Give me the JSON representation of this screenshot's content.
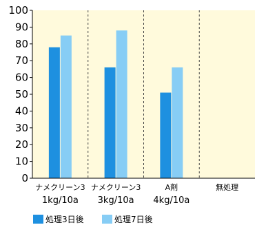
{
  "chart_data": {
    "type": "bar",
    "title": "",
    "xlabel": "",
    "ylabel": "",
    "ylim": [
      0,
      100
    ],
    "y_ticks": [
      0,
      10,
      20,
      30,
      40,
      50,
      60,
      70,
      80,
      90,
      100
    ],
    "grid": false,
    "legend_position": "bottom",
    "categories": [
      {
        "line1": "ナメクリーン3",
        "line2": "1kg/10a"
      },
      {
        "line1": "ナメクリーン3",
        "line2": "3kg/10a"
      },
      {
        "line1": "A剤",
        "line2": "4kg/10a"
      },
      {
        "line1": "無処理",
        "line2": ""
      }
    ],
    "series": [
      {
        "name": "処理3日後",
        "color": "#1e90e0",
        "values": [
          78,
          66,
          51,
          0
        ]
      },
      {
        "name": "処理7日後",
        "color": "#87cdf5",
        "values": [
          85,
          88,
          66,
          0
        ]
      }
    ],
    "plot_background": "#fffadc"
  }
}
